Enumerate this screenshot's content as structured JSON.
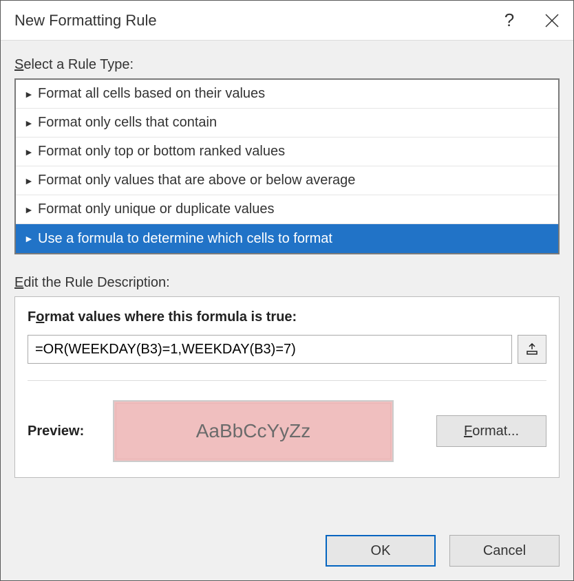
{
  "dialog": {
    "title": "New Formatting Rule",
    "help_label": "?",
    "close_label": "Close"
  },
  "ruleTypeSection": {
    "label_pre": "S",
    "label_post": "elect a Rule Type:"
  },
  "ruleTypes": {
    "items": [
      {
        "label": "Format all cells based on their values",
        "selected": false
      },
      {
        "label": "Format only cells that contain",
        "selected": false
      },
      {
        "label": "Format only top or bottom ranked values",
        "selected": false
      },
      {
        "label": "Format only values that are above or below average",
        "selected": false
      },
      {
        "label": "Format only unique or duplicate values",
        "selected": false
      },
      {
        "label": "Use a formula to determine which cells to format",
        "selected": true
      }
    ],
    "selected_bg": "#2173c7",
    "selected_fg": "#ffffff"
  },
  "descSection": {
    "label_pre": "E",
    "label_post": "dit the Rule Description:"
  },
  "formulaSection": {
    "title_pre": "F",
    "title_accel": "o",
    "title_post": "rmat values where this formula is true:",
    "value": "=OR(WEEKDAY(B3)=1,WEEKDAY(B3)=7)",
    "range_btn_name": "collapse-dialog"
  },
  "preview": {
    "label": "Preview:",
    "sample_text": "AaBbCcYyZz",
    "bg_color": "#f0bfbf",
    "text_color": "#6b6b6b",
    "format_btn_pre": "",
    "format_btn_accel": "F",
    "format_btn_post": "ormat..."
  },
  "buttons": {
    "ok": "OK",
    "cancel": "Cancel"
  },
  "styles": {
    "dialog_bg": "#f0f0f0",
    "border_color": "#7a7a7a"
  }
}
